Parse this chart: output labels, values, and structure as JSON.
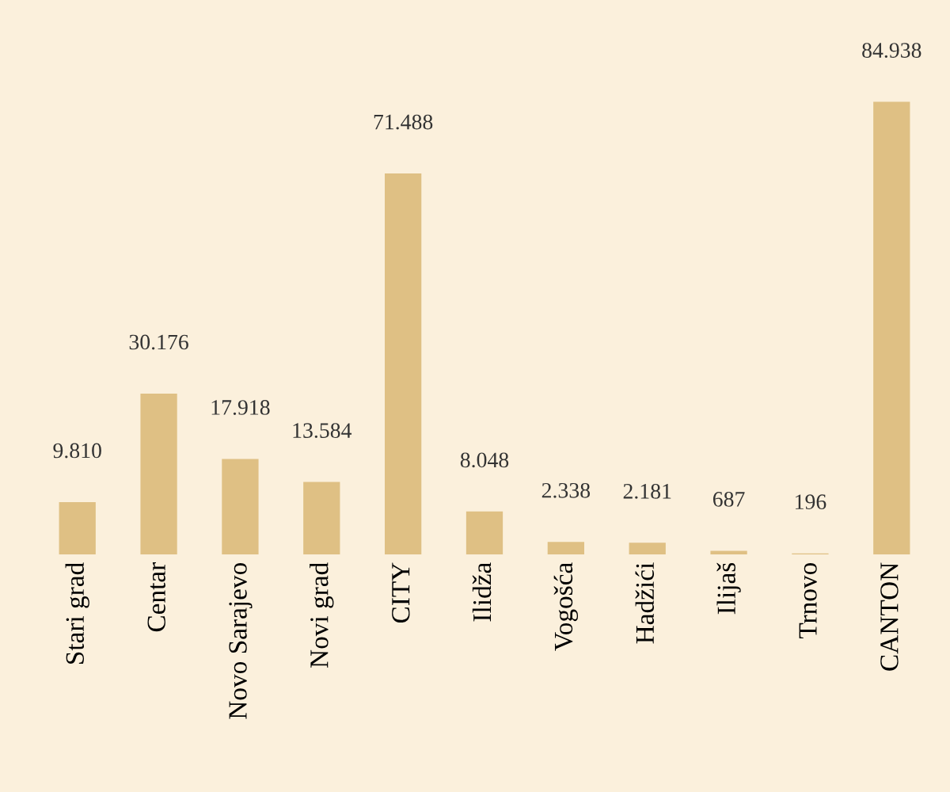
{
  "chart_data": {
    "type": "bar",
    "categories": [
      "Stari grad",
      "Centar",
      "Novo Sarajevo",
      "Novi grad",
      "CITY",
      "Ilidža",
      "Vogošća",
      "Hadžići",
      "Ilijaš",
      "Trnovo",
      "CANTON"
    ],
    "values": [
      9810,
      30176,
      17918,
      13584,
      71488,
      8048,
      2338,
      2181,
      687,
      196,
      84938
    ],
    "value_labels": [
      "9.810",
      "30.176",
      "17.918",
      "13.584",
      "71.488",
      "8.048",
      "2.338",
      "2.181",
      "687",
      "196",
      "84.938"
    ],
    "color": "#dfc084",
    "grid": false,
    "legend": false
  }
}
